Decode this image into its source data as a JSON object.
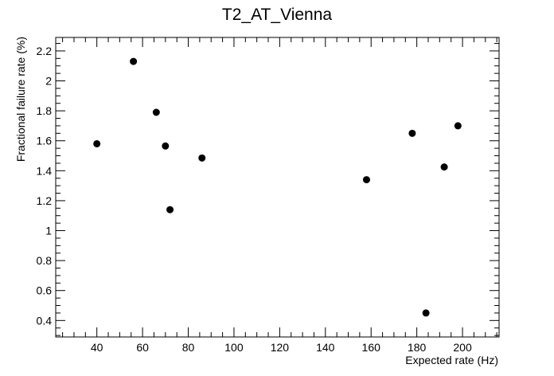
{
  "chart_data": {
    "type": "scatter",
    "title": "T2_AT_Vienna",
    "xlabel": "Expected rate (Hz)",
    "ylabel": "Fractional failure rate (%)",
    "xlim": [
      22,
      216
    ],
    "ylim": [
      0.29,
      2.29
    ],
    "xticks": [
      40,
      60,
      80,
      100,
      120,
      140,
      160,
      180,
      200
    ],
    "yticks": [
      0.4,
      0.6,
      0.8,
      1,
      1.2,
      1.4,
      1.6,
      1.8,
      2,
      2.2
    ],
    "grid": false,
    "points": [
      {
        "x": 40,
        "y": 1.58
      },
      {
        "x": 56,
        "y": 2.13
      },
      {
        "x": 66,
        "y": 1.79
      },
      {
        "x": 70,
        "y": 1.565
      },
      {
        "x": 72,
        "y": 1.14
      },
      {
        "x": 86,
        "y": 1.485
      },
      {
        "x": 158,
        "y": 1.34
      },
      {
        "x": 178,
        "y": 1.65
      },
      {
        "x": 184,
        "y": 0.45
      },
      {
        "x": 192,
        "y": 1.425
      },
      {
        "x": 198,
        "y": 1.7
      }
    ]
  }
}
